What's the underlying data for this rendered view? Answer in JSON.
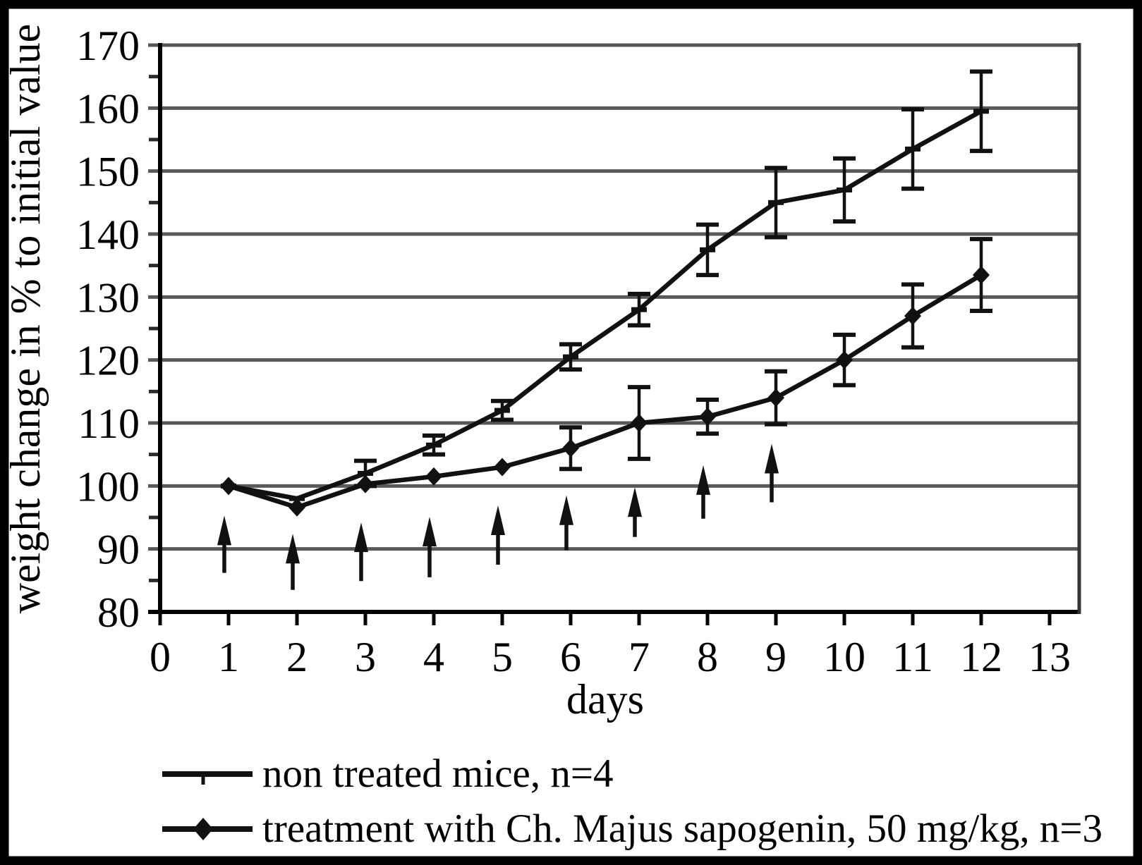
{
  "chart_data": {
    "type": "line",
    "title": "",
    "xlabel": "days",
    "ylabel": "weight change in % to initial value",
    "xlim": [
      0,
      13
    ],
    "ylim": [
      80,
      170
    ],
    "x_ticks": [
      0,
      1,
      2,
      3,
      4,
      5,
      6,
      7,
      8,
      9,
      10,
      11,
      12,
      13
    ],
    "y_ticks_major": [
      80,
      90,
      100,
      110,
      120,
      130,
      140,
      150,
      160,
      170
    ],
    "y_ticks_minor": [
      85,
      95,
      105,
      115,
      125,
      135,
      145,
      155,
      165
    ],
    "grid": "horizontal-major",
    "legend_position": "below-chart",
    "x": [
      1,
      2,
      3,
      4,
      5,
      6,
      7,
      8,
      9,
      10,
      11,
      12
    ],
    "series": [
      {
        "name": "non treated mice, n=4",
        "marker": "tick",
        "values": [
          100,
          98,
          102,
          106.5,
          112,
          120.5,
          128,
          137.5,
          145,
          147,
          153.5,
          159.5
        ],
        "errors": [
          0,
          0,
          2,
          1.5,
          1.5,
          2,
          2.5,
          4,
          5.5,
          5,
          6.3,
          6.3
        ]
      },
      {
        "name": "treatment with Ch. Majus sapogenin, 50 mg/kg, n=3",
        "marker": "diamond",
        "values": [
          100,
          96.6,
          100.3,
          101.5,
          103,
          106,
          110,
          111,
          114,
          120,
          127,
          133.5
        ],
        "errors": [
          0,
          0,
          0,
          0,
          0,
          3.3,
          5.7,
          2.7,
          4.2,
          4,
          5,
          5.7
        ]
      }
    ],
    "treatment_arrows": {
      "days": [
        1,
        2,
        3,
        4,
        5,
        6,
        7,
        8,
        9
      ],
      "base_values": [
        86.2,
        83.5,
        84.9,
        85.5,
        87.5,
        89.8,
        91.9,
        94.8,
        97.4
      ],
      "tip_values": [
        95.3,
        92.4,
        94.2,
        95.1,
        96.9,
        98.5,
        99.8,
        103.3,
        106.7
      ]
    },
    "colors": {
      "line": "#111111",
      "grid": "#595959",
      "text": "#000000",
      "frame": "#000000"
    }
  }
}
